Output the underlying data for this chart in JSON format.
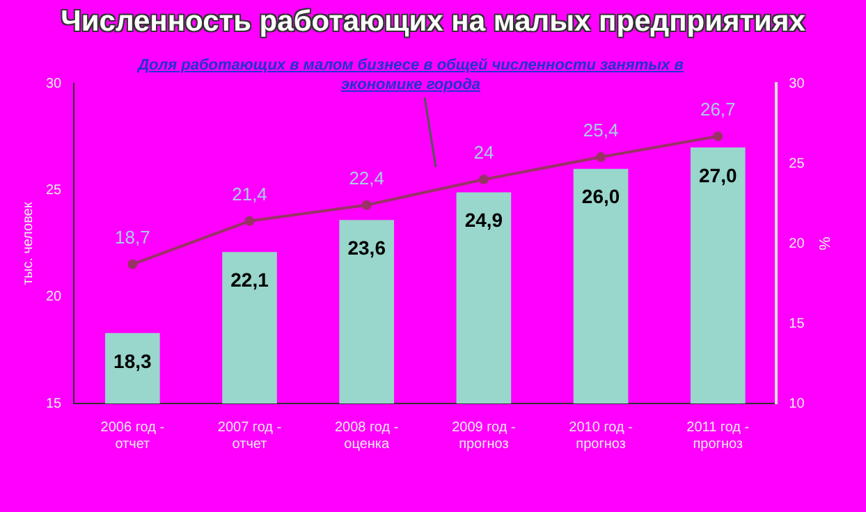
{
  "chart_data": {
    "type": "bar",
    "title": "Численность работающих на малых предприятиях",
    "ylabel": "тыс. человек",
    "y2label": "%",
    "categories": [
      "2006 год - отчет",
      "2007 год - отчет",
      "2008 год - оценка",
      "2009 год - прогноз",
      "2010 год - прогноз",
      "2011 год - прогноз"
    ],
    "series": [
      {
        "color": "#99d6cc",
        "values": [
          18.3,
          22.1,
          23.6,
          24.9,
          26.0,
          27.0
        ],
        "value_labels": [
          "18,3",
          "22,1",
          "23,6",
          "24,9",
          "26,0",
          "27,0"
        ]
      },
      {
        "type": "line",
        "axis": "y2",
        "name": "Доля работающих в малом бизнесе в общей численности занятых в экономике города",
        "color": "#993366",
        "values": [
          18.7,
          21.4,
          22.4,
          24,
          25.4,
          26.7
        ],
        "value_labels": [
          "18,7",
          "21,4",
          "22,4",
          "24",
          "25,4",
          "26,7"
        ]
      }
    ],
    "ylim": [
      15,
      30
    ],
    "yticks": [
      15,
      20,
      25,
      30
    ],
    "y2lim": [
      10,
      30
    ],
    "y2ticks": [
      10,
      15,
      20,
      25,
      30
    ],
    "marker": "circle",
    "grid": false,
    "legend": false
  }
}
